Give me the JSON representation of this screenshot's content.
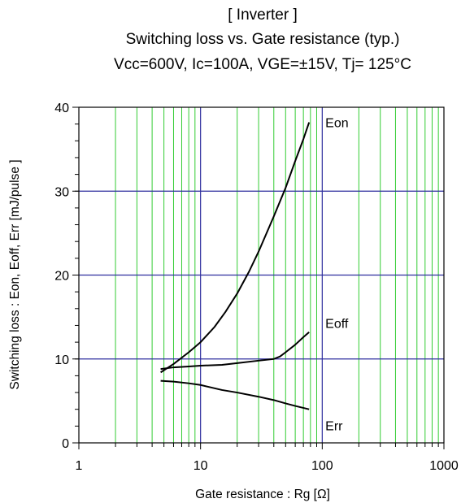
{
  "chart_data": {
    "type": "line",
    "title": "[ Inverter ]",
    "subtitle": "Switching loss  vs.  Gate resistance (typ.)",
    "conditions": "Vcc=600V, Ic=100A, VGE=±15V, Tj= 125°C",
    "xlabel": "Gate resistance : Rg [Ω]",
    "ylabel": "Switching loss  : Eon, Eoff, Err  [mJ/pulse ]",
    "xscale": "log",
    "xlim": [
      1,
      1000
    ],
    "ylim": [
      0,
      40
    ],
    "x_ticks": [
      1,
      10,
      100,
      1000
    ],
    "x_tick_labels": [
      "1",
      "10",
      "100",
      "1000"
    ],
    "y_ticks": [
      0,
      10,
      20,
      30,
      40
    ],
    "y_tick_labels": [
      "0",
      "10",
      "20",
      "30",
      "40"
    ],
    "grid": true,
    "series": [
      {
        "name": "Eon",
        "color": "#000000",
        "x": [
          4.7,
          6,
          8,
          10,
          13,
          16,
          20,
          25,
          30,
          40,
          50,
          60,
          70,
          78
        ],
        "y": [
          8.4,
          9.4,
          10.8,
          12.0,
          13.8,
          15.6,
          17.8,
          20.4,
          22.8,
          27.0,
          30.4,
          33.6,
          36.2,
          38.2
        ]
      },
      {
        "name": "Eoff",
        "color": "#000000",
        "x": [
          4.7,
          6,
          8,
          10,
          15,
          20,
          30,
          40,
          45,
          50,
          60,
          70,
          78
        ],
        "y": [
          8.8,
          9.0,
          9.1,
          9.2,
          9.3,
          9.5,
          9.8,
          10.0,
          10.3,
          10.8,
          11.7,
          12.6,
          13.2
        ]
      },
      {
        "name": "Err",
        "color": "#000000",
        "x": [
          4.7,
          6,
          8,
          10,
          15,
          20,
          30,
          40,
          50,
          60,
          78
        ],
        "y": [
          7.4,
          7.3,
          7.1,
          6.9,
          6.3,
          6.0,
          5.5,
          5.1,
          4.7,
          4.4,
          4.0
        ]
      }
    ],
    "colors": {
      "major_grid": "#2e2e9e",
      "minor_grid": "#33cc33",
      "axis": "#000000",
      "line": "#000000"
    }
  }
}
